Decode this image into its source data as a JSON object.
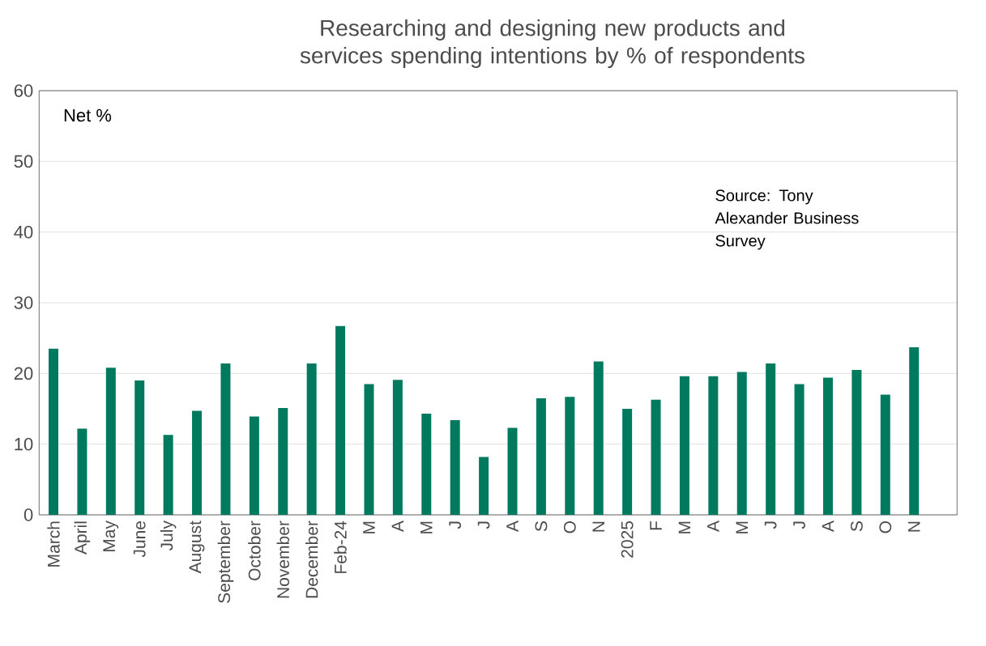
{
  "chart_data": {
    "type": "bar",
    "title": "Researching and designing new products and services spending intentions by % of respondents",
    "categories": [
      "March",
      "April",
      "May",
      "June",
      "July",
      "August",
      "September",
      "October",
      "November",
      "December",
      "Feb-24",
      "M",
      "A",
      "M",
      "J",
      "J",
      "A",
      "S",
      "O",
      "N",
      "2025",
      "F",
      "M",
      "A",
      "M",
      "J",
      "J",
      "A",
      "S",
      "O",
      "N"
    ],
    "values": [
      23.5,
      12.2,
      20.8,
      19.0,
      11.3,
      14.7,
      21.4,
      13.9,
      15.1,
      21.4,
      26.7,
      18.5,
      19.1,
      14.3,
      13.4,
      8.2,
      12.3,
      16.5,
      16.7,
      21.7,
      15.0,
      16.3,
      19.6,
      19.6,
      20.2,
      21.4,
      18.5,
      19.4,
      20.5,
      17.0,
      23.7
    ],
    "color": "#007a5e",
    "ylim": [
      0,
      60
    ],
    "yticks": [
      0,
      10,
      20,
      30,
      40,
      50,
      60
    ],
    "grid": "y",
    "annotations": [
      "Net %",
      "Source: Tony Alexander Business Survey"
    ]
  }
}
